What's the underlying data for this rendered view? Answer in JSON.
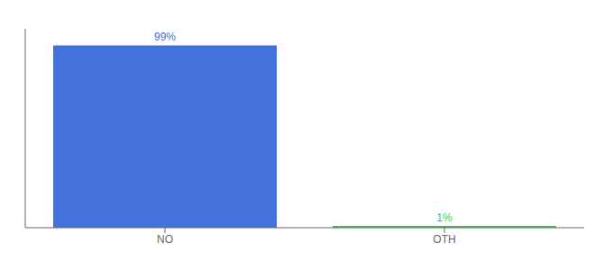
{
  "chart_data": {
    "type": "bar",
    "categories": [
      "NO",
      "OTH"
    ],
    "values": [
      99,
      1
    ],
    "value_labels": [
      "99%",
      "1%"
    ],
    "data_labels": true,
    "colors": [
      "#4472db",
      "#2ecc40"
    ],
    "ylim": [
      0,
      108
    ],
    "tick_labels": "x",
    "grid": false
  }
}
